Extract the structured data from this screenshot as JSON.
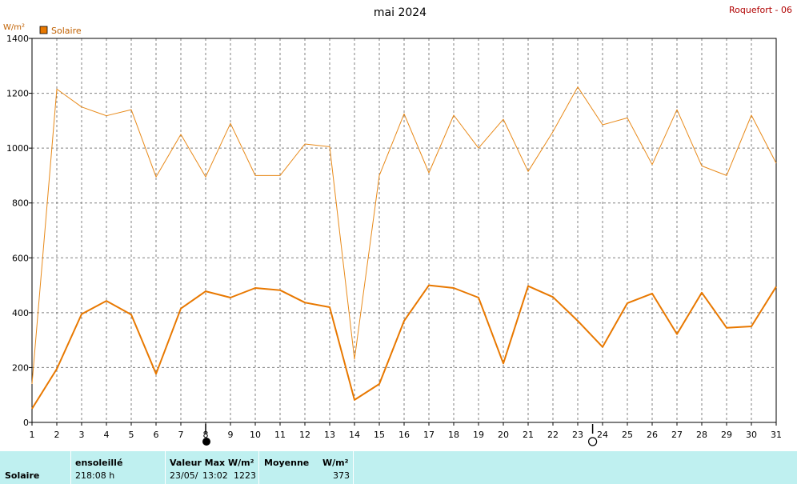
{
  "chart_data": {
    "type": "line",
    "title": "mai 2024",
    "station": "Roquefort - 06",
    "ylabel": "W/m²",
    "ylim": [
      0,
      1400
    ],
    "yticks": [
      0,
      200,
      400,
      600,
      800,
      1000,
      1200,
      1400
    ],
    "x": [
      1,
      2,
      3,
      4,
      5,
      6,
      7,
      8,
      9,
      10,
      11,
      12,
      13,
      14,
      15,
      16,
      17,
      18,
      19,
      20,
      21,
      22,
      23,
      24,
      25,
      26,
      27,
      28,
      29,
      30,
      31
    ],
    "xlim": [
      1,
      31
    ],
    "legend": {
      "label": "Solaire",
      "color": "#e87800",
      "position": "top-left"
    },
    "grid": true,
    "series": [
      {
        "name": "max",
        "color": "#e88a1a",
        "values": [
          140,
          1215,
          1150,
          1118,
          1140,
          895,
          1050,
          895,
          1090,
          900,
          900,
          1015,
          1005,
          230,
          900,
          1125,
          910,
          1120,
          1000,
          1105,
          915,
          1060,
          1223,
          1085,
          1110,
          940,
          1140,
          935,
          900,
          1120,
          945
        ]
      },
      {
        "name": "moyenne",
        "color": "#e87800",
        "values": [
          50,
          195,
          395,
          443,
          393,
          177,
          415,
          478,
          455,
          490,
          482,
          437,
          420,
          82,
          140,
          370,
          500,
          490,
          455,
          215,
          497,
          457,
          370,
          275,
          435,
          470,
          322,
          473,
          345,
          350,
          495
        ]
      }
    ],
    "moon_phases": [
      {
        "day": 8,
        "phase": "full"
      },
      {
        "day": 23.6,
        "phase": "new"
      }
    ]
  },
  "footer": {
    "label": "Solaire",
    "sun_header": "ensoleillé",
    "sun_value": "218:08 h",
    "max_header": "Valeur Max",
    "max_unit": "W/m²",
    "max_date": "23/05/",
    "max_time": "13:02",
    "max_value": "1223",
    "avg_header": "Moyenne",
    "avg_unit": "W/m²",
    "avg_value": "373"
  }
}
